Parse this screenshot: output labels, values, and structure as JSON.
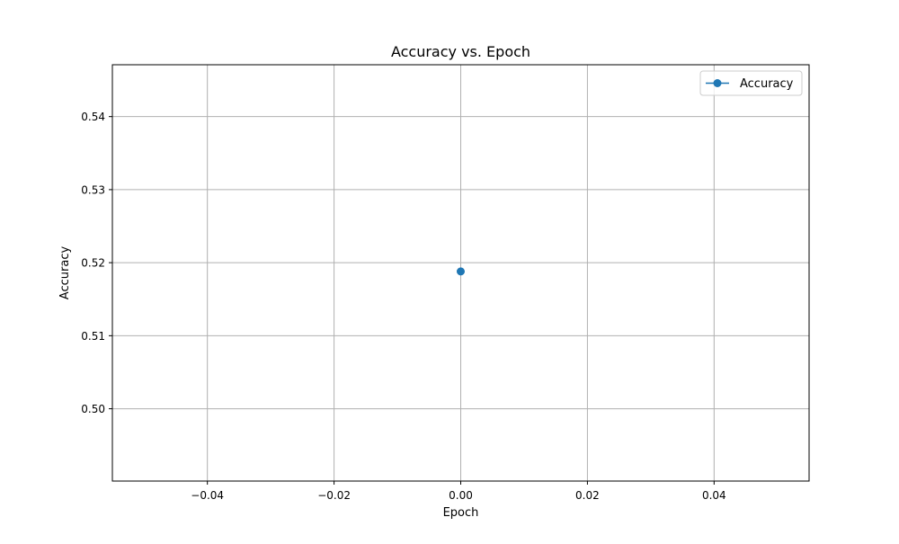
{
  "chart_data": {
    "type": "line",
    "title": "Accuracy vs. Epoch",
    "xlabel": "Epoch",
    "ylabel": "Accuracy",
    "xlim": [
      -0.055,
      0.055
    ],
    "ylim": [
      0.4901,
      0.5471
    ],
    "xticks": [
      -0.04,
      -0.02,
      0.0,
      0.02,
      0.04
    ],
    "xtick_labels": [
      "−0.04",
      "−0.02",
      "0.00",
      "0.02",
      "0.04"
    ],
    "yticks": [
      0.5,
      0.51,
      0.52,
      0.53,
      0.54
    ],
    "ytick_labels": [
      "0.50",
      "0.51",
      "0.52",
      "0.53",
      "0.54"
    ],
    "grid": true,
    "legend_position": "top-right",
    "series": [
      {
        "name": "Accuracy",
        "color": "#1f77b4",
        "marker": "circle",
        "x": [
          0
        ],
        "y": [
          0.5188
        ]
      }
    ]
  }
}
